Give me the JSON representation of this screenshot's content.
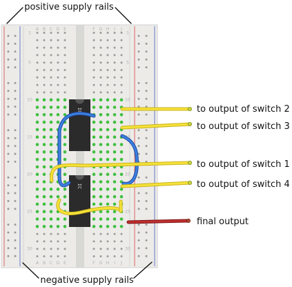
{
  "annotations": {
    "top_label": "positive supply rails",
    "bottom_label": "negative supply rails",
    "labels": [
      "to output of switch 2",
      "to output of switch 3",
      "to output of switch 1",
      "to output of switch 4",
      "final output"
    ]
  },
  "breadboard": {
    "column_letters_left": [
      "A",
      "B",
      "C",
      "D",
      "E"
    ],
    "column_letters_right": [
      "F",
      "G",
      "H",
      "I",
      "J"
    ],
    "row_numbers": [
      "1",
      "5",
      "10",
      "15",
      "20",
      "25",
      "30"
    ],
    "chip_label": "IC",
    "chip_count": 2
  },
  "colors": {
    "board": "#ececea",
    "rail_positive": "#e07a7a",
    "rail_negative": "#7f8ccf",
    "hole": "#9a9a9a",
    "active_hole": "#3fbf3f",
    "chip": "#2b2b2b",
    "wire_blue": "#2f6fd6",
    "wire_yellow": "#f5e23a",
    "wire_red": "#b52424"
  }
}
